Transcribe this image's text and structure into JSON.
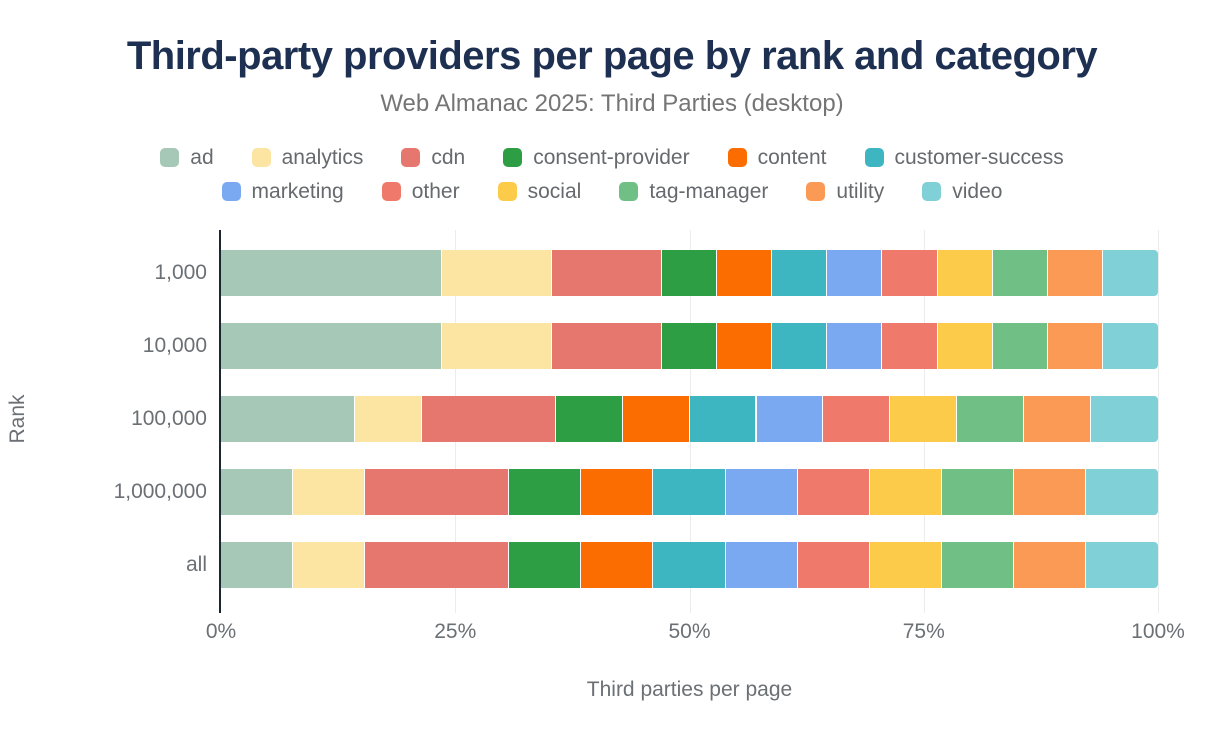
{
  "header": {
    "title": "Third-party providers per page by rank and category",
    "subtitle": "Web Almanac 2025: Third Parties (desktop)"
  },
  "colors": {
    "title_text": "#1e3052",
    "axis_text": "#6b7075",
    "axis_line": "#1a2633",
    "gridline": "#ececec",
    "background": "#ffffff"
  },
  "chart_data": {
    "type": "bar",
    "stacked": true,
    "orientation": "horizontal",
    "title": "Third-party providers per page by rank and category",
    "subtitle": "Web Almanac 2025: Third Parties (desktop)",
    "xlabel": "Third parties per page",
    "ylabel": "Rank",
    "xlim": [
      0,
      100
    ],
    "x_tick_labels": [
      "0%",
      "25%",
      "50%",
      "75%",
      "100%"
    ],
    "x_tick_positions": [
      0,
      25,
      50,
      75,
      100
    ],
    "grid": "vertical-light",
    "legend_position": "top-center-two-rows",
    "categories": [
      "1,000",
      "10,000",
      "100,000",
      "1,000,000",
      "all"
    ],
    "value_unit": "percent share of third parties per page",
    "series": [
      {
        "name": "ad",
        "color": "#a6c8b6",
        "values": [
          23.53,
          23.53,
          14.29,
          7.69,
          7.69
        ]
      },
      {
        "name": "analytics",
        "color": "#fce5a2",
        "values": [
          11.76,
          11.76,
          7.14,
          7.69,
          7.69
        ]
      },
      {
        "name": "cdn",
        "color": "#e6776f",
        "values": [
          11.76,
          11.76,
          14.29,
          15.38,
          15.38
        ]
      },
      {
        "name": "consent-provider",
        "color": "#2e9e45",
        "values": [
          5.88,
          5.88,
          7.14,
          7.69,
          7.69
        ]
      },
      {
        "name": "content",
        "color": "#fb6d01",
        "values": [
          5.88,
          5.88,
          7.14,
          7.69,
          7.69
        ]
      },
      {
        "name": "customer-success",
        "color": "#3db6c2",
        "values": [
          5.88,
          5.88,
          7.14,
          7.69,
          7.69
        ]
      },
      {
        "name": "marketing",
        "color": "#7aa9f2",
        "values": [
          5.88,
          5.88,
          7.14,
          7.69,
          7.69
        ]
      },
      {
        "name": "other",
        "color": "#ef796b",
        "values": [
          5.88,
          5.88,
          7.14,
          7.69,
          7.69
        ]
      },
      {
        "name": "social",
        "color": "#fbcb49",
        "values": [
          5.88,
          5.88,
          7.14,
          7.69,
          7.69
        ]
      },
      {
        "name": "tag-manager",
        "color": "#70c086",
        "values": [
          5.88,
          5.88,
          7.14,
          7.69,
          7.69
        ]
      },
      {
        "name": "utility",
        "color": "#fb9a54",
        "values": [
          5.88,
          5.88,
          7.14,
          7.69,
          7.69
        ]
      },
      {
        "name": "video",
        "color": "#7fd1d7",
        "values": [
          5.88,
          5.88,
          7.14,
          7.69,
          7.69
        ]
      }
    ],
    "legend_rows": [
      [
        "ad",
        "analytics",
        "cdn",
        "consent-provider",
        "content",
        "customer-success"
      ],
      [
        "marketing",
        "other",
        "social",
        "tag-manager",
        "utility",
        "video"
      ]
    ]
  }
}
